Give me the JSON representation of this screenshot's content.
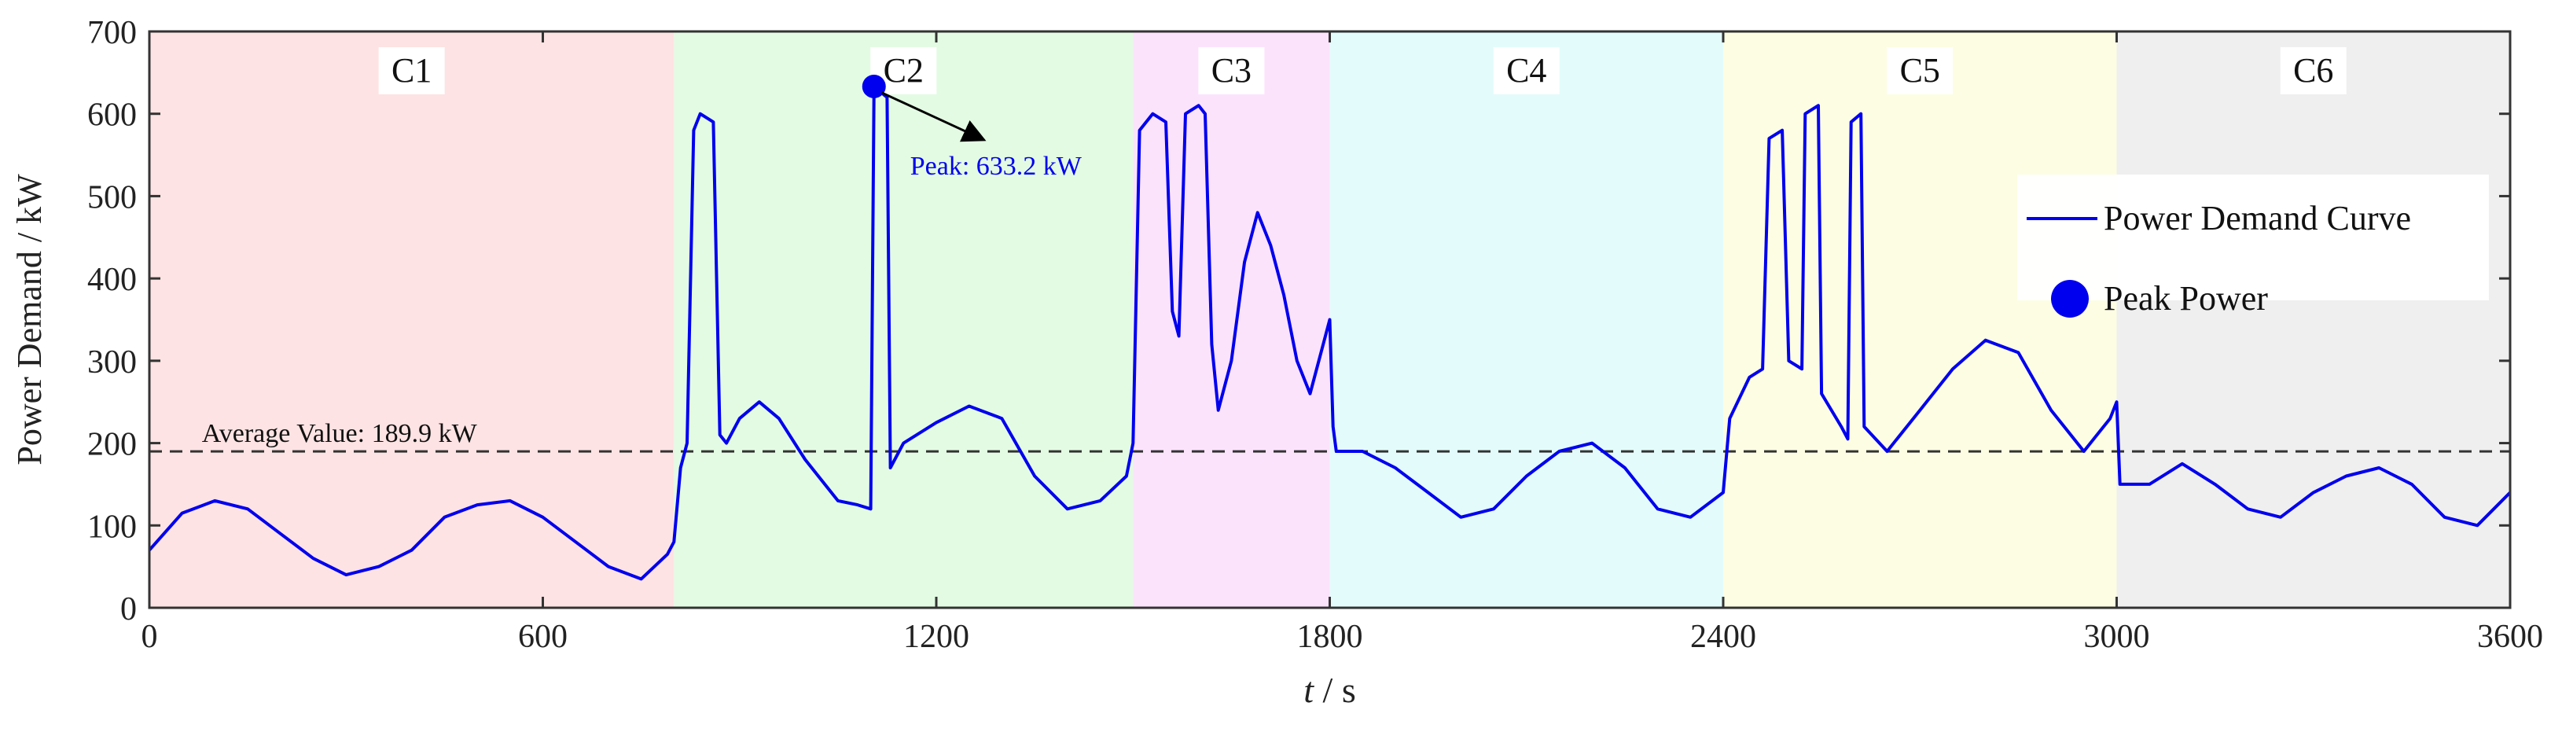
{
  "chart_data": {
    "type": "line",
    "title": "",
    "xlabel_italic": "t",
    "xlabel_rest": " / s",
    "ylabel": "Power Demand / kW",
    "xlim": [
      0,
      3600
    ],
    "ylim": [
      0,
      700
    ],
    "xticks": [
      0,
      600,
      1200,
      1800,
      2400,
      3000,
      3600
    ],
    "yticks": [
      0,
      100,
      200,
      300,
      400,
      500,
      600,
      700
    ],
    "grid": false,
    "legend_position": "right",
    "legend": {
      "line_label": "Power Demand Curve",
      "marker_label": "Peak Power"
    },
    "regions": [
      {
        "label": "C1",
        "start": 0,
        "end": 800,
        "color": "#fde3e3"
      },
      {
        "label": "C2",
        "start": 800,
        "end": 1500,
        "color": "#e3fbe3"
      },
      {
        "label": "C3",
        "start": 1500,
        "end": 1800,
        "color": "#fce3fc"
      },
      {
        "label": "C4",
        "start": 1800,
        "end": 2400,
        "color": "#e3fbfb"
      },
      {
        "label": "C5",
        "start": 2400,
        "end": 3000,
        "color": "#fdfde3"
      },
      {
        "label": "C6",
        "start": 3000,
        "end": 3600,
        "color": "#efefef"
      }
    ],
    "average": {
      "value": 189.9,
      "label": "Average Value: 189.9 kW"
    },
    "peak": {
      "x": 1105,
      "y": 633.2,
      "label": "Peak: 633.2 kW"
    },
    "series": [
      {
        "name": "Power Demand Curve",
        "color": "#0000ee",
        "points": [
          [
            0,
            70
          ],
          [
            50,
            115
          ],
          [
            100,
            130
          ],
          [
            150,
            120
          ],
          [
            200,
            90
          ],
          [
            250,
            60
          ],
          [
            300,
            40
          ],
          [
            350,
            50
          ],
          [
            400,
            70
          ],
          [
            450,
            110
          ],
          [
            500,
            125
          ],
          [
            550,
            130
          ],
          [
            600,
            110
          ],
          [
            650,
            80
          ],
          [
            700,
            50
          ],
          [
            750,
            35
          ],
          [
            790,
            65
          ],
          [
            800,
            80
          ],
          [
            810,
            170
          ],
          [
            820,
            200
          ],
          [
            830,
            580
          ],
          [
            840,
            600
          ],
          [
            860,
            590
          ],
          [
            870,
            210
          ],
          [
            880,
            200
          ],
          [
            900,
            230
          ],
          [
            930,
            250
          ],
          [
            960,
            230
          ],
          [
            1000,
            180
          ],
          [
            1050,
            130
          ],
          [
            1080,
            125
          ],
          [
            1100,
            120
          ],
          [
            1105,
            633
          ],
          [
            1125,
            620
          ],
          [
            1130,
            170
          ],
          [
            1150,
            200
          ],
          [
            1200,
            225
          ],
          [
            1250,
            245
          ],
          [
            1300,
            230
          ],
          [
            1350,
            160
          ],
          [
            1400,
            120
          ],
          [
            1450,
            130
          ],
          [
            1490,
            160
          ],
          [
            1500,
            200
          ],
          [
            1510,
            580
          ],
          [
            1530,
            600
          ],
          [
            1550,
            590
          ],
          [
            1560,
            360
          ],
          [
            1570,
            330
          ],
          [
            1580,
            600
          ],
          [
            1600,
            610
          ],
          [
            1610,
            600
          ],
          [
            1620,
            320
          ],
          [
            1630,
            240
          ],
          [
            1650,
            300
          ],
          [
            1670,
            420
          ],
          [
            1690,
            480
          ],
          [
            1710,
            440
          ],
          [
            1730,
            380
          ],
          [
            1750,
            300
          ],
          [
            1770,
            260
          ],
          [
            1790,
            320
          ],
          [
            1800,
            350
          ],
          [
            1805,
            220
          ],
          [
            1810,
            190
          ],
          [
            1850,
            190
          ],
          [
            1900,
            170
          ],
          [
            1950,
            140
          ],
          [
            2000,
            110
          ],
          [
            2050,
            120
          ],
          [
            2100,
            160
          ],
          [
            2150,
            190
          ],
          [
            2200,
            200
          ],
          [
            2250,
            170
          ],
          [
            2300,
            120
          ],
          [
            2350,
            110
          ],
          [
            2400,
            140
          ],
          [
            2410,
            230
          ],
          [
            2440,
            280
          ],
          [
            2460,
            290
          ],
          [
            2470,
            570
          ],
          [
            2490,
            580
          ],
          [
            2500,
            300
          ],
          [
            2520,
            290
          ],
          [
            2525,
            600
          ],
          [
            2545,
            610
          ],
          [
            2550,
            260
          ],
          [
            2580,
            220
          ],
          [
            2590,
            205
          ],
          [
            2595,
            590
          ],
          [
            2610,
            600
          ],
          [
            2615,
            220
          ],
          [
            2650,
            190
          ],
          [
            2700,
            240
          ],
          [
            2750,
            290
          ],
          [
            2800,
            325
          ],
          [
            2850,
            310
          ],
          [
            2900,
            240
          ],
          [
            2950,
            190
          ],
          [
            2990,
            230
          ],
          [
            3000,
            250
          ],
          [
            3005,
            150
          ],
          [
            3050,
            150
          ],
          [
            3100,
            175
          ],
          [
            3150,
            150
          ],
          [
            3200,
            120
          ],
          [
            3250,
            110
          ],
          [
            3300,
            140
          ],
          [
            3350,
            160
          ],
          [
            3400,
            170
          ],
          [
            3450,
            150
          ],
          [
            3500,
            110
          ],
          [
            3550,
            100
          ],
          [
            3600,
            140
          ]
        ]
      }
    ]
  }
}
